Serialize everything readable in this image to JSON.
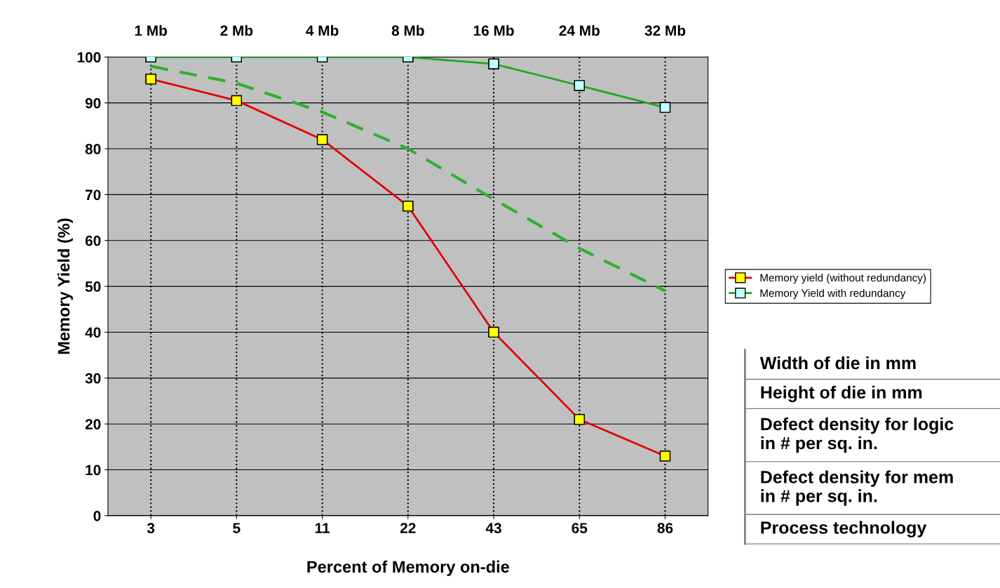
{
  "chart_data": {
    "type": "line",
    "xlabel": "Percent of Memory on-die",
    "ylabel": "Memory Yield (%)",
    "categories": [
      "3",
      "5",
      "11",
      "22",
      "43",
      "65",
      "86"
    ],
    "series": [
      {
        "name": "Memory yield (without redundancy)",
        "color": "#e00000",
        "values": [
          95.2,
          90.5,
          82,
          67.5,
          40,
          21,
          13
        ],
        "marker": "square",
        "colors": [
          "#ffff00",
          "#ffff00",
          "#ffff00",
          "#ffff00",
          "#ffff00",
          "#ffff00",
          "#ffff00"
        ]
      },
      {
        "name": "Memory Yield with redundancy",
        "color": "#20a820",
        "values": [
          100,
          100,
          100,
          100,
          98.5,
          93.8,
          89
        ],
        "marker": "square",
        "colors": [
          "#c0ffff",
          "#c0ffff",
          "#c0ffff",
          "#c0ffff",
          "#c0ffff",
          "#c0ffff",
          "#c0ffff"
        ]
      },
      {
        "color": "#30b030",
        "values": [
          98,
          94.3,
          88,
          80,
          69,
          58.3,
          49
        ],
        "line_style": "dashed",
        "marker": "none"
      }
    ],
    "ylim": [
      0,
      100
    ],
    "yticks": [
      0,
      10,
      20,
      30,
      40,
      50,
      60,
      70,
      80,
      90,
      100
    ],
    "grid": true,
    "legend": "right",
    "annotations": [
      "1 Mb",
      "2 Mb",
      "4 Mb",
      "8 Mb",
      "16 Mb",
      "24 Mb",
      "32 Mb",
      "Width of die in mm",
      "Height of die in mm",
      "Defect density for logic\nin # per sq. in.",
      "Defect density for mem\nin # per sq. in.",
      "Process technology"
    ]
  }
}
